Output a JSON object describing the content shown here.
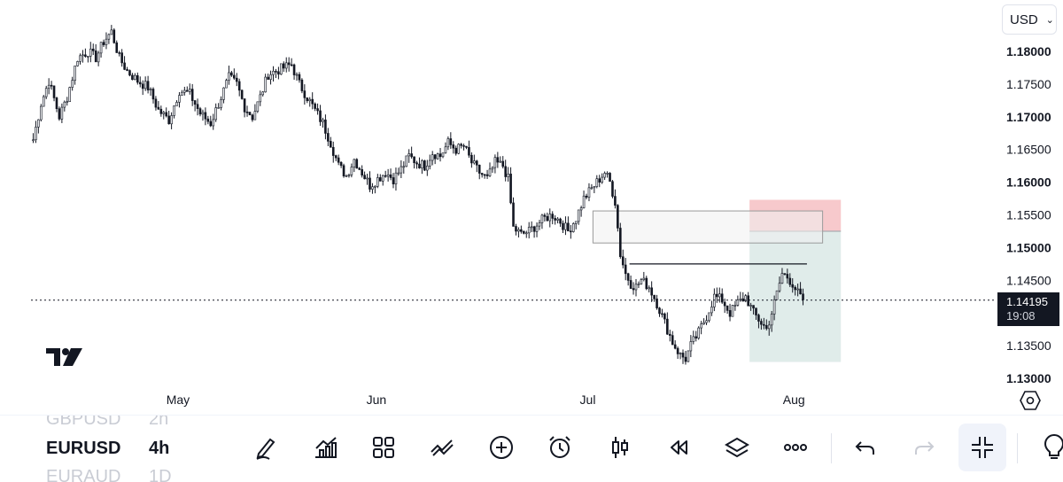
{
  "chart_data": {
    "type": "candlestick",
    "symbol": "EURUSD",
    "interval": "4h",
    "currency": "USD",
    "price_axis": {
      "ticks": [
        "1.18000",
        "1.17500",
        "1.17000",
        "1.16500",
        "1.16000",
        "1.15500",
        "1.15000",
        "1.14500",
        "1.13500",
        "1.13000"
      ],
      "range": [
        1.13,
        1.184
      ]
    },
    "time_axis": {
      "labels": [
        "May",
        "Jun",
        "Jul",
        "Aug"
      ]
    },
    "last_price": "1.14195",
    "countdown": "19:08",
    "series_path": [
      [
        0,
        1.1665
      ],
      [
        3,
        1.172
      ],
      [
        6,
        1.1755
      ],
      [
        10,
        1.17
      ],
      [
        13,
        1.173
      ],
      [
        17,
        1.179
      ],
      [
        21,
        1.18
      ],
      [
        24,
        1.179
      ],
      [
        27,
        1.1815
      ],
      [
        30,
        1.183
      ],
      [
        33,
        1.179
      ],
      [
        36,
        1.177
      ],
      [
        40,
        1.1755
      ],
      [
        44,
        1.1745
      ],
      [
        48,
        1.171
      ],
      [
        52,
        1.1695
      ],
      [
        56,
        1.174
      ],
      [
        60,
        1.1735
      ],
      [
        64,
        1.1705
      ],
      [
        68,
        1.169
      ],
      [
        72,
        1.173
      ],
      [
        75,
        1.176
      ],
      [
        78,
        1.175
      ],
      [
        81,
        1.1715
      ],
      [
        84,
        1.17
      ],
      [
        87,
        1.173
      ],
      [
        90,
        1.1765
      ],
      [
        93,
        1.177
      ],
      [
        96,
        1.1775
      ],
      [
        99,
        1.178
      ],
      [
        102,
        1.175
      ],
      [
        105,
        1.173
      ],
      [
        108,
        1.171
      ],
      [
        111,
        1.169
      ],
      [
        114,
        1.166
      ],
      [
        117,
        1.1625
      ],
      [
        120,
        1.161
      ],
      [
        123,
        1.1635
      ],
      [
        126,
        1.1615
      ],
      [
        129,
        1.1595
      ],
      [
        132,
        1.1605
      ],
      [
        135,
        1.1615
      ],
      [
        138,
        1.1605
      ],
      [
        141,
        1.162
      ],
      [
        144,
        1.164
      ],
      [
        147,
        1.163
      ],
      [
        150,
        1.1625
      ],
      [
        153,
        1.1645
      ],
      [
        156,
        1.164
      ],
      [
        159,
        1.166
      ],
      [
        162,
        1.165
      ],
      [
        165,
        1.1655
      ],
      [
        168,
        1.163
      ],
      [
        171,
        1.1615
      ],
      [
        174,
        1.1605
      ],
      [
        177,
        1.163
      ],
      [
        180,
        1.1625
      ],
      [
        182,
        1.1605
      ],
      [
        184,
        1.153
      ],
      [
        187,
        1.152
      ],
      [
        190,
        1.1525
      ],
      [
        193,
        1.1535
      ],
      [
        196,
        1.1545
      ],
      [
        199,
        1.155
      ],
      [
        202,
        1.154
      ],
      [
        205,
        1.1525
      ],
      [
        208,
        1.1545
      ],
      [
        211,
        1.1575
      ],
      [
        214,
        1.159
      ],
      [
        217,
        1.1605
      ],
      [
        219,
        1.1615
      ],
      [
        221,
        1.16
      ],
      [
        223,
        1.157
      ],
      [
        225,
        1.149
      ],
      [
        227,
        1.146
      ],
      [
        229,
        1.1445
      ],
      [
        231,
        1.144
      ],
      [
        233,
        1.145
      ],
      [
        236,
        1.144
      ],
      [
        239,
        1.1415
      ],
      [
        242,
        1.1385
      ],
      [
        245,
        1.1355
      ],
      [
        248,
        1.1335
      ],
      [
        250,
        1.133
      ],
      [
        252,
        1.135
      ],
      [
        255,
        1.137
      ],
      [
        258,
        1.1395
      ],
      [
        261,
        1.1425
      ],
      [
        264,
        1.142
      ],
      [
        267,
        1.14
      ],
      [
        270,
        1.1415
      ],
      [
        273,
        1.1425
      ],
      [
        276,
        1.14
      ],
      [
        279,
        1.1385
      ],
      [
        281,
        1.1375
      ],
      [
        283,
        1.14
      ],
      [
        285,
        1.143
      ],
      [
        287,
        1.146
      ],
      [
        289,
        1.1455
      ],
      [
        291,
        1.1445
      ],
      [
        293,
        1.143
      ],
      [
        295,
        1.142
      ]
    ],
    "last_index": 295,
    "total_slots": 370,
    "annotations": {
      "zone_box": {
        "from_index": 215,
        "to_index": 303,
        "top": 1.1556,
        "bottom": 1.1507
      },
      "resistance_line": {
        "from_index": 229,
        "to_index": 297,
        "price": 1.1475
      },
      "stop_zone": {
        "from_index": 275,
        "to_index": 310,
        "top": 1.1573,
        "bottom": 1.1525,
        "color": "#f7c9cc"
      },
      "target_zone": {
        "from_index": 275,
        "to_index": 310,
        "top": 1.1525,
        "bottom": 1.1325,
        "color": "#e0ecea"
      }
    }
  },
  "header": {
    "currency_label": "USD"
  },
  "bottom_bar": {
    "symbols": [
      {
        "symbol": "GBPUSD",
        "interval": "2h"
      },
      {
        "symbol": "EURUSD",
        "interval": "4h"
      },
      {
        "symbol": "EURAUD",
        "interval": "1D"
      }
    ],
    "tools": [
      "pencil-icon",
      "chart-indicators-icon",
      "grid-layout-icon",
      "drawing-tools-icon",
      "plus-circle-icon",
      "alarm-icon",
      "candlestick-icon",
      "replay-icon",
      "layers-icon",
      "more-icon",
      "undo-icon",
      "redo-icon",
      "collapse-icon",
      "lightbulb-icon"
    ]
  }
}
